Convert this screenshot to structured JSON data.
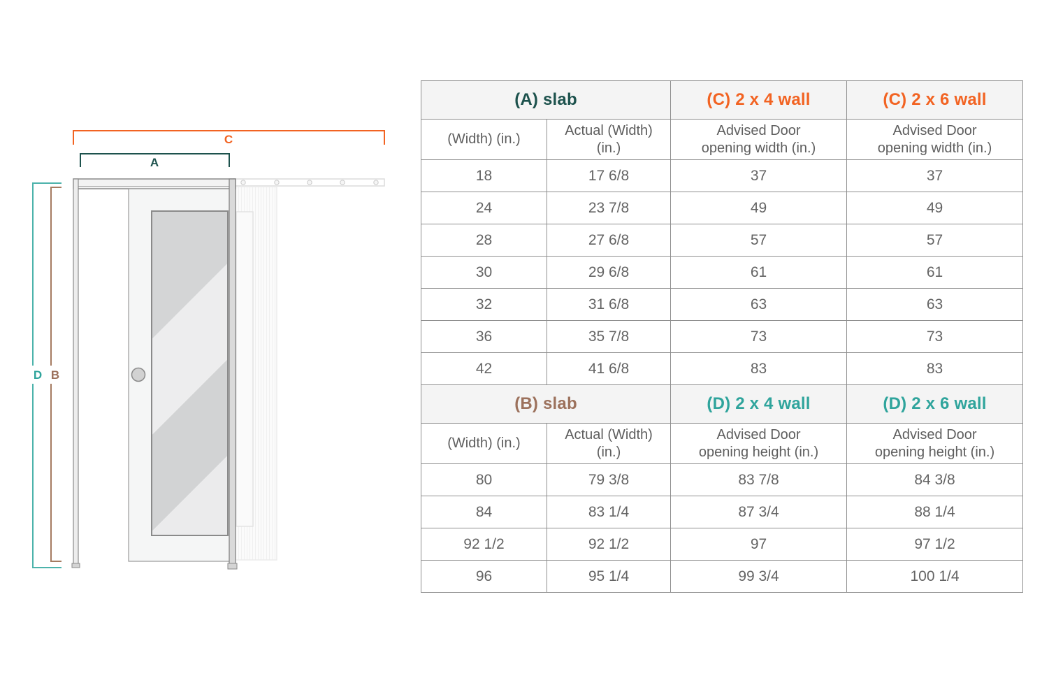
{
  "diagram": {
    "title": "pocket door dimension diagram",
    "labels": {
      "a": {
        "text": "A",
        "color": "#1d524d"
      },
      "b": {
        "text": "B",
        "color": "#9c715c"
      },
      "c": {
        "text": "C",
        "color": "#f26322"
      },
      "d": {
        "text": "D",
        "color": "#2fa49c"
      }
    }
  },
  "table": {
    "border_color": "#8f8f8f",
    "header_bg": "#f4f4f4",
    "sections": [
      {
        "headers": [
          {
            "label": "(A) slab",
            "color": "#1d524d",
            "span": 2
          },
          {
            "label": "(C) 2 x 4 wall",
            "color": "#f26322",
            "span": 1
          },
          {
            "label": "(C) 2 x 6 wall",
            "color": "#f26322",
            "span": 1
          }
        ],
        "sub_headers": [
          "(Width) (in.)",
          "Actual (Width)\n(in.)",
          "Advised Door\nopening width (in.)",
          "Advised Door\nopening width (in.)"
        ],
        "rows": [
          [
            "18",
            "17 6/8",
            "37",
            "37"
          ],
          [
            "24",
            "23 7/8",
            "49",
            "49"
          ],
          [
            "28",
            "27 6/8",
            "57",
            "57"
          ],
          [
            "30",
            "29 6/8",
            "61",
            "61"
          ],
          [
            "32",
            "31 6/8",
            "63",
            "63"
          ],
          [
            "36",
            "35 7/8",
            "73",
            "73"
          ],
          [
            "42",
            "41 6/8",
            "83",
            "83"
          ]
        ]
      },
      {
        "headers": [
          {
            "label": "(B) slab",
            "color": "#9c715c",
            "span": 2
          },
          {
            "label": "(D) 2 x 4 wall",
            "color": "#2fa49c",
            "span": 1
          },
          {
            "label": "(D) 2 x 6 wall",
            "color": "#2fa49c",
            "span": 1
          }
        ],
        "sub_headers": [
          "(Width) (in.)",
          "Actual (Width)\n(in.)",
          "Advised Door\nopening height (in.)",
          "Advised Door\nopening height (in.)"
        ],
        "rows": [
          [
            "80",
            "79 3/8",
            "83 7/8",
            "84 3/8"
          ],
          [
            "84",
            "83 1/4",
            "87 3/4",
            "88 1/4"
          ],
          [
            "92 1/2",
            "92 1/2",
            "97",
            "97 1/2"
          ],
          [
            "96",
            "95 1/4",
            "99 3/4",
            "100 1/4"
          ]
        ]
      }
    ]
  }
}
